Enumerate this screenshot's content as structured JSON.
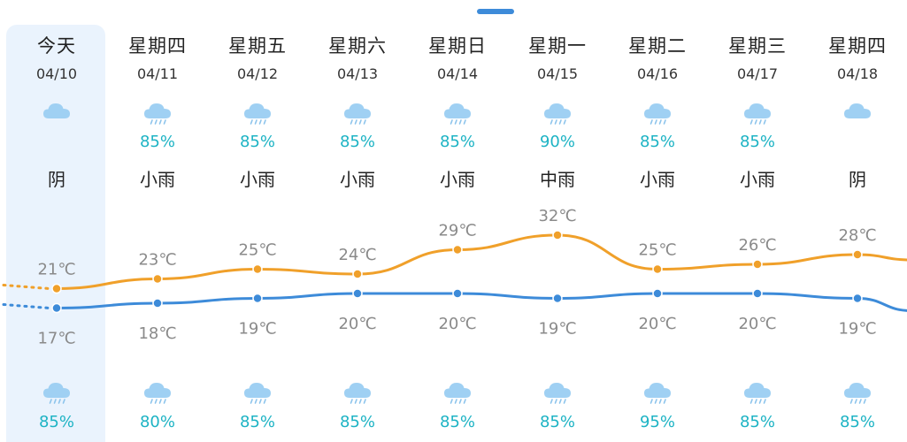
{
  "days": [
    {
      "dow": "今天",
      "date": "04/10",
      "top_icon": "cloudy-icon",
      "top_pop": "",
      "cond": "阴",
      "high": 21,
      "low": 17,
      "bot_icon": "rain-cloud-icon",
      "bot_pop": "85%"
    },
    {
      "dow": "星期四",
      "date": "04/11",
      "top_icon": "rain-cloud-icon",
      "top_pop": "85%",
      "cond": "小雨",
      "high": 23,
      "low": 18,
      "bot_icon": "rain-cloud-icon",
      "bot_pop": "80%"
    },
    {
      "dow": "星期五",
      "date": "04/12",
      "top_icon": "rain-cloud-icon",
      "top_pop": "85%",
      "cond": "小雨",
      "high": 25,
      "low": 19,
      "bot_icon": "rain-cloud-icon",
      "bot_pop": "85%"
    },
    {
      "dow": "星期六",
      "date": "04/13",
      "top_icon": "rain-cloud-icon",
      "top_pop": "85%",
      "cond": "小雨",
      "high": 24,
      "low": 20,
      "bot_icon": "rain-cloud-icon",
      "bot_pop": "85%"
    },
    {
      "dow": "星期日",
      "date": "04/14",
      "top_icon": "rain-cloud-icon",
      "top_pop": "85%",
      "cond": "小雨",
      "high": 29,
      "low": 20,
      "bot_icon": "rain-cloud-icon",
      "bot_pop": "85%"
    },
    {
      "dow": "星期一",
      "date": "04/15",
      "top_icon": "rain-cloud-icon",
      "top_pop": "90%",
      "cond": "中雨",
      "high": 32,
      "low": 19,
      "bot_icon": "rain-cloud-icon",
      "bot_pop": "85%"
    },
    {
      "dow": "星期二",
      "date": "04/16",
      "top_icon": "rain-cloud-icon",
      "top_pop": "85%",
      "cond": "小雨",
      "high": 25,
      "low": 20,
      "bot_icon": "rain-cloud-icon",
      "bot_pop": "95%"
    },
    {
      "dow": "星期三",
      "date": "04/17",
      "top_icon": "rain-cloud-icon",
      "top_pop": "85%",
      "cond": "小雨",
      "high": 26,
      "low": 20,
      "bot_icon": "rain-cloud-icon",
      "bot_pop": "85%"
    },
    {
      "dow": "星期四",
      "date": "04/18",
      "top_icon": "cloudy-icon",
      "top_pop": "",
      "cond": "阴",
      "high": 28,
      "low": 19,
      "bot_icon": "rain-cloud-icon",
      "bot_pop": "85%"
    }
  ],
  "temp_unit": "℃",
  "colors": {
    "high_line": "#f0a02a",
    "low_line": "#3d8bd9",
    "pop_text": "#1db3c4",
    "today_bg": "#eaf3fd"
  },
  "chart_data": {
    "type": "line",
    "categories": [
      "04/10",
      "04/11",
      "04/12",
      "04/13",
      "04/14",
      "04/15",
      "04/16",
      "04/17",
      "04/18"
    ],
    "series": [
      {
        "values": [
          21,
          23,
          25,
          24,
          29,
          32,
          25,
          26,
          28
        ]
      },
      {
        "values": [
          17,
          18,
          19,
          20,
          20,
          19,
          20,
          20,
          19
        ]
      }
    ]
  }
}
